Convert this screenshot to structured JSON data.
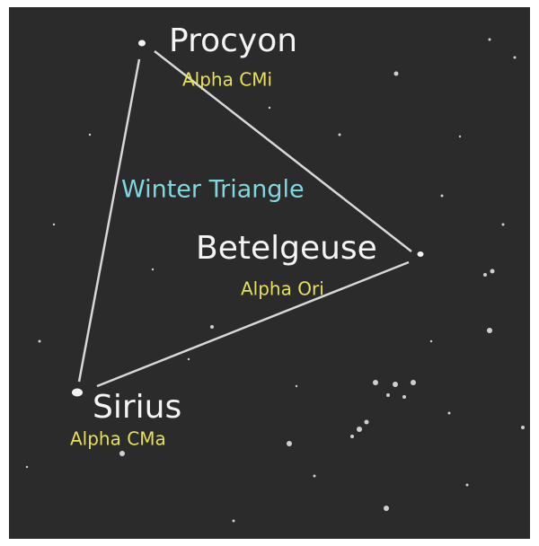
{
  "asterism": "Winter Triangle",
  "stars": [
    {
      "name": "Procyon",
      "designation": "Alpha CMi"
    },
    {
      "name": "Betelgeuse",
      "designation": "Alpha Ori"
    },
    {
      "name": "Sirius",
      "designation": "Alpha CMa"
    }
  ]
}
